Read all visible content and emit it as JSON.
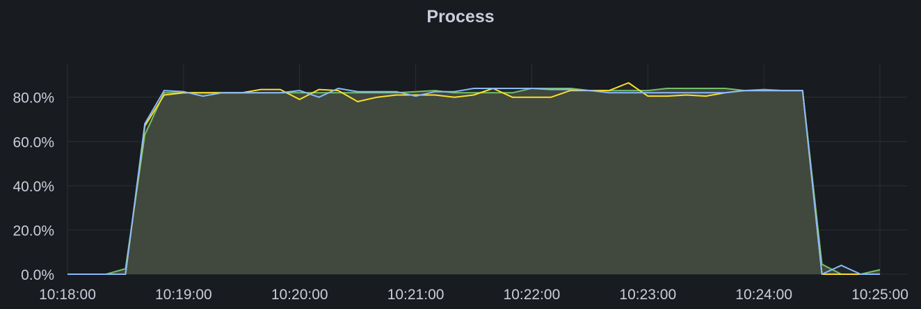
{
  "panel": {
    "title": "Process"
  },
  "colors": {
    "background": "#181b1f",
    "grid": "#2c3036",
    "text": "#ccccdc",
    "fill": "#444b3f",
    "series_green": "#73bf69",
    "series_yellow": "#fade2a",
    "series_blue": "#8ab8ff"
  },
  "chart_data": {
    "type": "area",
    "title": "Process",
    "xlabel": "",
    "ylabel": "",
    "x_ticks": [
      "10:18:00",
      "10:19:00",
      "10:20:00",
      "10:21:00",
      "10:22:00",
      "10:23:00",
      "10:24:00",
      "10:25:00"
    ],
    "y_ticks": [
      "0.0%",
      "20.0%",
      "40.0%",
      "60.0%",
      "80.0%"
    ],
    "xlim": [
      "10:18:00",
      "10:25:00"
    ],
    "ylim": [
      0,
      95
    ],
    "grid": true,
    "legend": "none",
    "x": [
      "10:18:00",
      "10:18:10",
      "10:18:20",
      "10:18:30",
      "10:18:40",
      "10:18:50",
      "10:19:00",
      "10:19:10",
      "10:19:20",
      "10:19:30",
      "10:19:40",
      "10:19:50",
      "10:20:00",
      "10:20:10",
      "10:20:20",
      "10:20:30",
      "10:20:40",
      "10:20:50",
      "10:21:00",
      "10:21:10",
      "10:21:20",
      "10:21:30",
      "10:21:40",
      "10:21:50",
      "10:22:00",
      "10:22:10",
      "10:22:20",
      "10:22:30",
      "10:22:40",
      "10:22:50",
      "10:23:00",
      "10:23:10",
      "10:23:20",
      "10:23:30",
      "10:23:40",
      "10:23:50",
      "10:24:00",
      "10:24:10",
      "10:24:20",
      "10:24:30",
      "10:24:40",
      "10:24:50",
      "10:25:00"
    ],
    "series": [
      {
        "color": "#73bf69",
        "values": [
          0,
          0,
          0,
          2.5,
          63,
          82,
          82,
          82,
          82,
          82,
          82,
          82,
          82,
          82,
          82,
          82,
          82,
          82,
          82.5,
          83,
          82,
          82,
          82,
          82,
          84,
          84,
          84,
          83,
          83,
          83,
          83,
          84,
          84,
          84,
          84,
          83,
          83.5,
          83,
          83,
          4.5,
          0,
          0,
          2
        ]
      },
      {
        "color": "#fade2a",
        "values": [
          0,
          0,
          0,
          0,
          67,
          81,
          82,
          82,
          82,
          82,
          83.5,
          83.5,
          79,
          83.5,
          83,
          78,
          80,
          81,
          81,
          81,
          80,
          81,
          84,
          80,
          80,
          80,
          83,
          83,
          83,
          86.5,
          80.5,
          80.5,
          81,
          80.5,
          82,
          83,
          83,
          83,
          83,
          0,
          0,
          0,
          0
        ]
      },
      {
        "color": "#8ab8ff",
        "values": [
          0,
          0,
          0,
          0,
          68,
          83,
          82.5,
          80.5,
          82,
          82,
          82,
          82,
          83,
          80,
          84,
          82.5,
          82.5,
          82.5,
          80.5,
          82.5,
          82.5,
          84,
          84,
          84,
          84,
          83.5,
          83.5,
          83,
          82,
          82,
          82,
          82,
          82,
          82,
          82,
          83,
          83,
          83,
          83,
          0,
          4,
          0,
          0
        ]
      }
    ]
  }
}
